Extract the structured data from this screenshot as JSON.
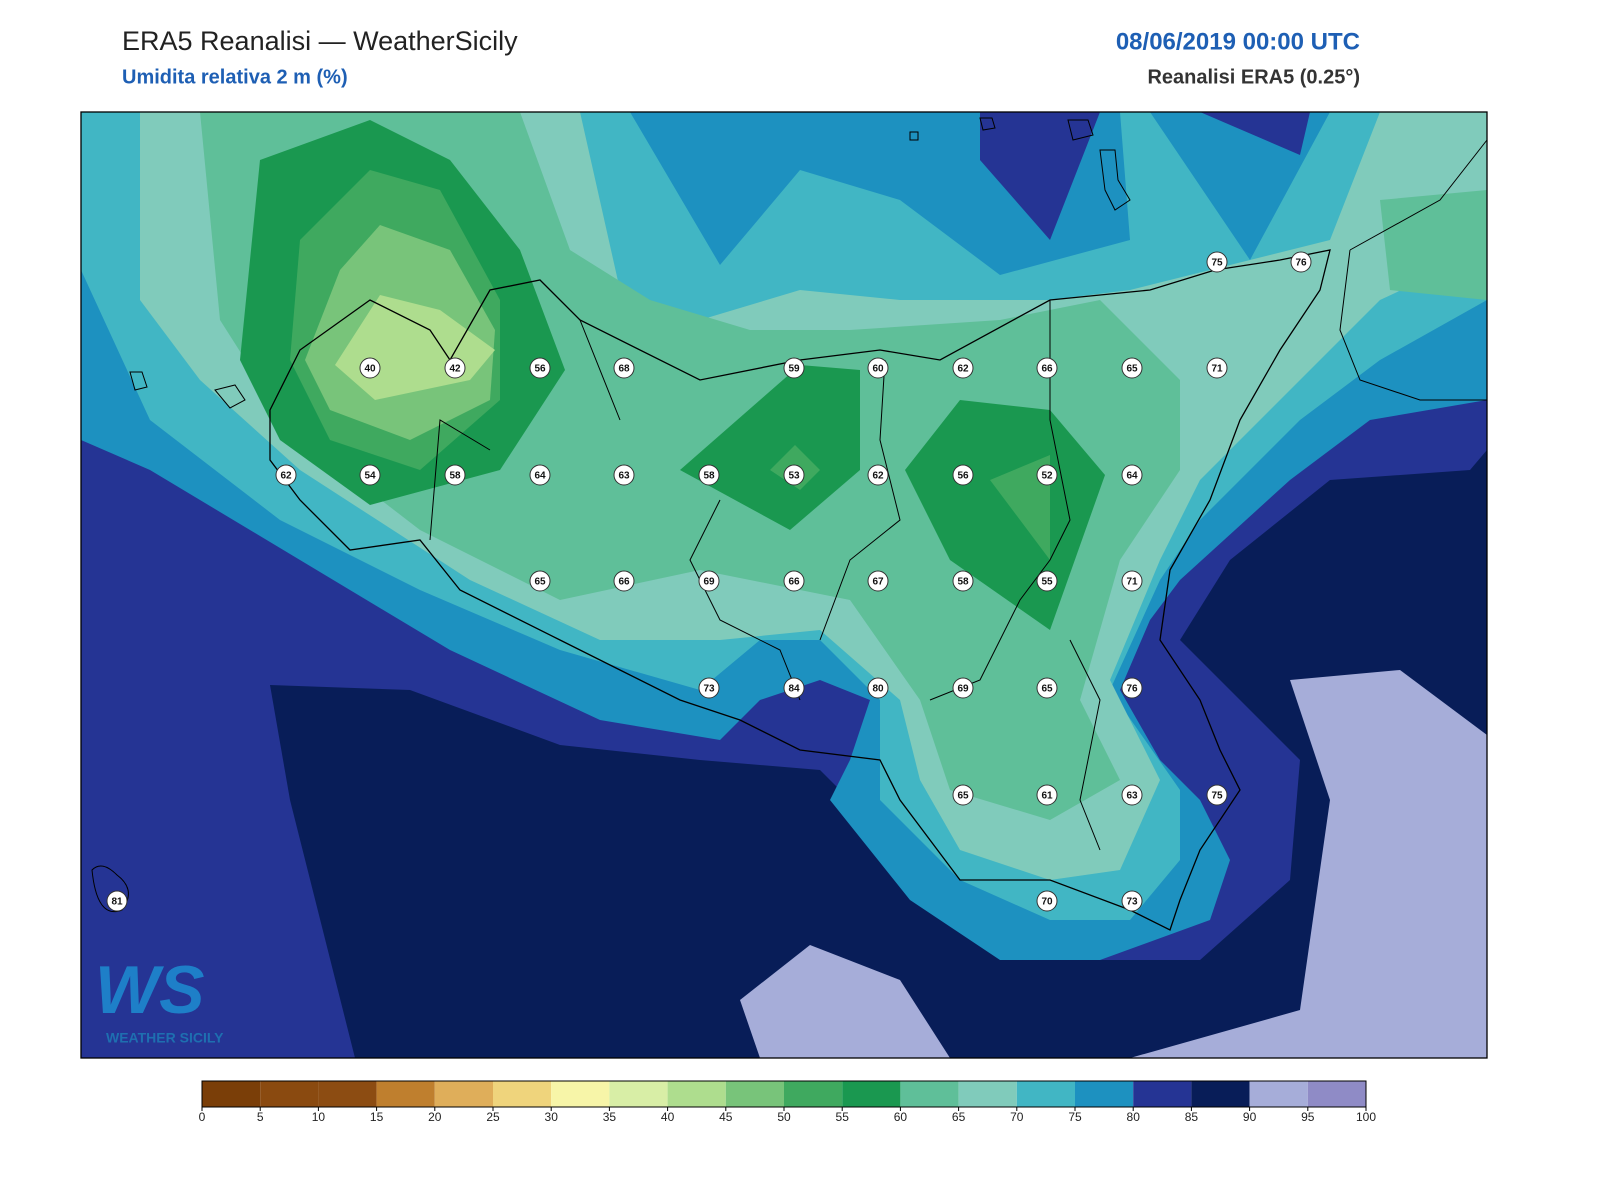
{
  "header": {
    "title": "ERA5 Reanalisi — WeatherSicily",
    "subtitle": "Umidita relativa 2 m (%)",
    "date": "08/06/2019 00:00 UTC",
    "source": "Reanalisi ERA5 (0.25°)"
  },
  "points": [
    {
      "value": 75
    },
    {
      "value": 76
    },
    {
      "value": 40
    },
    {
      "value": 42
    },
    {
      "value": 56
    },
    {
      "value": 68
    },
    {
      "value": 59
    },
    {
      "value": 60
    },
    {
      "value": 62
    },
    {
      "value": 66
    },
    {
      "value": 65
    },
    {
      "value": 71
    },
    {
      "value": 62
    },
    {
      "value": 54
    },
    {
      "value": 58
    },
    {
      "value": 64
    },
    {
      "value": 63
    },
    {
      "value": 58
    },
    {
      "value": 53
    },
    {
      "value": 62
    },
    {
      "value": 56
    },
    {
      "value": 52
    },
    {
      "value": 64
    },
    {
      "value": 65
    },
    {
      "value": 66
    },
    {
      "value": 69
    },
    {
      "value": 66
    },
    {
      "value": 67
    },
    {
      "value": 58
    },
    {
      "value": 55
    },
    {
      "value": 71
    },
    {
      "value": 73
    },
    {
      "value": 84
    },
    {
      "value": 80
    },
    {
      "value": 69
    },
    {
      "value": 65
    },
    {
      "value": 76
    },
    {
      "value": 65
    },
    {
      "value": 61
    },
    {
      "value": 63
    },
    {
      "value": 75
    },
    {
      "value": 81
    },
    {
      "value": 70
    },
    {
      "value": 73
    }
  ],
  "colorbar": {
    "ticks": [
      0,
      5,
      10,
      15,
      20,
      25,
      30,
      35,
      40,
      45,
      50,
      55,
      60,
      65,
      70,
      75,
      80,
      85,
      90,
      95,
      100
    ],
    "colors": [
      "#7a3e08",
      "#8a4a10",
      "#8c4c12",
      "#bf7f2e",
      "#dfae5a",
      "#efd47c",
      "#f7f5a8",
      "#d8eea6",
      "#aedd8e",
      "#78c47a",
      "#3fa95f",
      "#1a9850",
      "#5fbf99",
      "#80cbbb",
      "#41b6c4",
      "#1d91c0",
      "#253494",
      "#081d58",
      "#a6add9",
      "#8f8bc6"
    ]
  },
  "logo": {
    "mark": "WS",
    "text": "WEATHER SICILY"
  }
}
